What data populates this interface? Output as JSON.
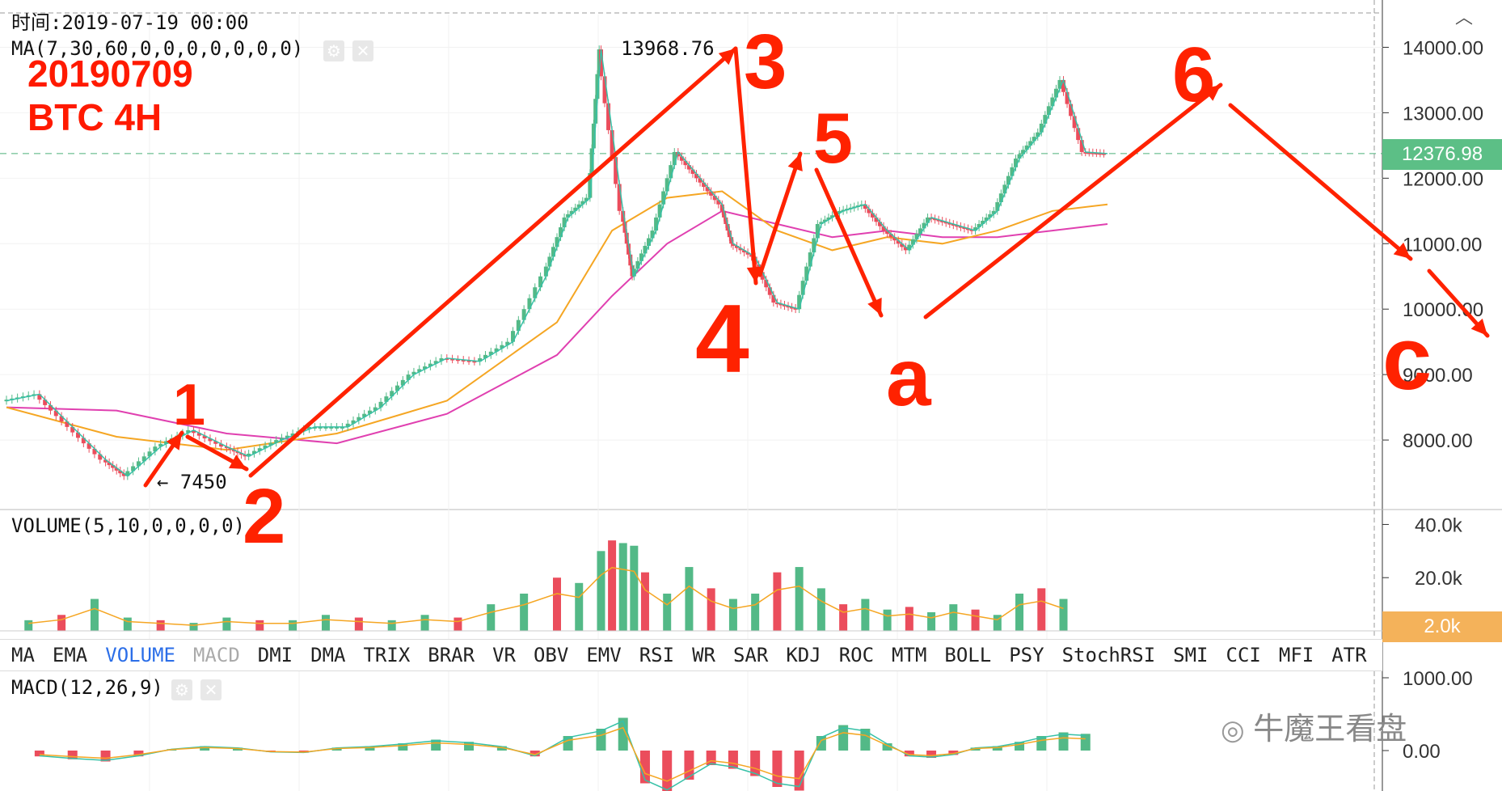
{
  "header": {
    "time_label": "时间:2019-07-19 00:00",
    "ma_label": "MA(7,30,60,0,0,0,0,0,0,0)",
    "settings_icon": "gear-icon",
    "close_icon": "close-icon"
  },
  "annotation_headline": {
    "date": "20190709",
    "title": "BTC 4H"
  },
  "price_labels": {
    "high": "13968.76",
    "low": "← 7450",
    "current": "12376.98"
  },
  "y_axis_price": [
    "14000.00",
    "13000.00",
    "12000.00",
    "11000.00",
    "10000.00",
    "9000.00",
    "8000.00"
  ],
  "volume_panel": {
    "label": "VOLUME(5,10,0,0,0,0)",
    "ticks": [
      "40.0k",
      "20.0k"
    ],
    "current": "2.0k"
  },
  "macd_panel": {
    "label": "MACD(12,26,9)",
    "ticks": [
      "1000.00",
      "0.00"
    ]
  },
  "indicator_tabs": [
    {
      "label": "MA",
      "state": "normal"
    },
    {
      "label": "EMA",
      "state": "normal"
    },
    {
      "label": "VOLUME",
      "state": "active"
    },
    {
      "label": "MACD",
      "state": "disabled"
    },
    {
      "label": "DMI",
      "state": "normal"
    },
    {
      "label": "DMA",
      "state": "normal"
    },
    {
      "label": "TRIX",
      "state": "normal"
    },
    {
      "label": "BRAR",
      "state": "normal"
    },
    {
      "label": "VR",
      "state": "normal"
    },
    {
      "label": "OBV",
      "state": "normal"
    },
    {
      "label": "EMV",
      "state": "normal"
    },
    {
      "label": "RSI",
      "state": "normal"
    },
    {
      "label": "WR",
      "state": "normal"
    },
    {
      "label": "SAR",
      "state": "normal"
    },
    {
      "label": "KDJ",
      "state": "normal"
    },
    {
      "label": "ROC",
      "state": "normal"
    },
    {
      "label": "MTM",
      "state": "normal"
    },
    {
      "label": "BOLL",
      "state": "normal"
    },
    {
      "label": "PSY",
      "state": "normal"
    },
    {
      "label": "StochRSI",
      "state": "normal"
    },
    {
      "label": "SMI",
      "state": "normal"
    },
    {
      "label": "CCI",
      "state": "normal"
    },
    {
      "label": "MFI",
      "state": "normal"
    },
    {
      "label": "ATR",
      "state": "normal"
    }
  ],
  "wave_labels": [
    "1",
    "2",
    "3",
    "4",
    "5",
    "6",
    "a",
    "c"
  ],
  "watermark": "牛魔王看盘",
  "colors": {
    "up": "#53b987",
    "down": "#eb4d5c",
    "ma7": "#36c1a7",
    "ma30": "#f5a623",
    "ma60": "#e040b0",
    "annotation": "#ff2200"
  },
  "chart_data": {
    "type": "line",
    "title": "BTC 4H",
    "x_range": [
      0,
      100
    ],
    "ylim": [
      7000,
      14500
    ],
    "series": [
      {
        "name": "price",
        "x": [
          0,
          3,
          6,
          9,
          11,
          14,
          17,
          20,
          22,
          25,
          28,
          31,
          34,
          37,
          40,
          43,
          46,
          49,
          51,
          53,
          54,
          56,
          57,
          59,
          61,
          63,
          65,
          66,
          68,
          70,
          72,
          74,
          76,
          78,
          80,
          82,
          84,
          86,
          88,
          90,
          92,
          94,
          96,
          98,
          100
        ],
        "y": [
          8600,
          8700,
          8200,
          7700,
          7450,
          7900,
          8150,
          7900,
          7750,
          8000,
          8200,
          8200,
          8500,
          9000,
          9250,
          9200,
          9500,
          10500,
          11400,
          11700,
          13968,
          11500,
          10500,
          11200,
          12400,
          12000,
          11600,
          11000,
          10800,
          10100,
          10000,
          11300,
          11500,
          11600,
          11200,
          10900,
          11400,
          11300,
          11200,
          11500,
          12300,
          12700,
          13500,
          12400,
          12376
        ]
      },
      {
        "name": "MA30",
        "x": [
          0,
          10,
          20,
          30,
          40,
          50,
          55,
          60,
          65,
          70,
          75,
          80,
          85,
          90,
          95,
          100
        ],
        "y": [
          8500,
          8050,
          7850,
          8100,
          8600,
          9800,
          11200,
          11700,
          11800,
          11200,
          10900,
          11100,
          11000,
          11200,
          11500,
          11600
        ]
      },
      {
        "name": "MA60",
        "x": [
          0,
          10,
          20,
          30,
          40,
          50,
          55,
          60,
          65,
          70,
          75,
          80,
          85,
          90,
          95,
          100
        ],
        "y": [
          8500,
          8450,
          8100,
          7950,
          8400,
          9300,
          10200,
          11000,
          11500,
          11300,
          11100,
          11200,
          11100,
          11100,
          11200,
          11300
        ]
      }
    ],
    "volume": [
      {
        "x": 2,
        "v": 4
      },
      {
        "x": 5,
        "v": 6
      },
      {
        "x": 8,
        "v": 12
      },
      {
        "x": 11,
        "v": 5
      },
      {
        "x": 14,
        "v": 4
      },
      {
        "x": 17,
        "v": 3
      },
      {
        "x": 20,
        "v": 5
      },
      {
        "x": 23,
        "v": 4
      },
      {
        "x": 26,
        "v": 4
      },
      {
        "x": 29,
        "v": 6
      },
      {
        "x": 32,
        "v": 5
      },
      {
        "x": 35,
        "v": 4
      },
      {
        "x": 38,
        "v": 6
      },
      {
        "x": 41,
        "v": 5
      },
      {
        "x": 44,
        "v": 10
      },
      {
        "x": 47,
        "v": 14
      },
      {
        "x": 50,
        "v": 20
      },
      {
        "x": 52,
        "v": 18
      },
      {
        "x": 54,
        "v": 30
      },
      {
        "x": 55,
        "v": 34
      },
      {
        "x": 56,
        "v": 33
      },
      {
        "x": 57,
        "v": 32
      },
      {
        "x": 58,
        "v": 22
      },
      {
        "x": 60,
        "v": 14
      },
      {
        "x": 62,
        "v": 24
      },
      {
        "x": 64,
        "v": 16
      },
      {
        "x": 66,
        "v": 12
      },
      {
        "x": 68,
        "v": 14
      },
      {
        "x": 70,
        "v": 22
      },
      {
        "x": 72,
        "v": 24
      },
      {
        "x": 74,
        "v": 16
      },
      {
        "x": 76,
        "v": 10
      },
      {
        "x": 78,
        "v": 12
      },
      {
        "x": 80,
        "v": 8
      },
      {
        "x": 82,
        "v": 9
      },
      {
        "x": 84,
        "v": 7
      },
      {
        "x": 86,
        "v": 10
      },
      {
        "x": 88,
        "v": 8
      },
      {
        "x": 90,
        "v": 6
      },
      {
        "x": 92,
        "v": 14
      },
      {
        "x": 94,
        "v": 16
      },
      {
        "x": 96,
        "v": 12
      }
    ],
    "macd": [
      {
        "x": 3,
        "v": -80
      },
      {
        "x": 6,
        "v": -120
      },
      {
        "x": 9,
        "v": -150
      },
      {
        "x": 12,
        "v": -80
      },
      {
        "x": 15,
        "v": 20
      },
      {
        "x": 18,
        "v": 60
      },
      {
        "x": 21,
        "v": 40
      },
      {
        "x": 24,
        "v": -20
      },
      {
        "x": 27,
        "v": -30
      },
      {
        "x": 30,
        "v": 40
      },
      {
        "x": 33,
        "v": 60
      },
      {
        "x": 36,
        "v": 100
      },
      {
        "x": 39,
        "v": 150
      },
      {
        "x": 42,
        "v": 120
      },
      {
        "x": 45,
        "v": 60
      },
      {
        "x": 48,
        "v": -80
      },
      {
        "x": 51,
        "v": 200
      },
      {
        "x": 54,
        "v": 300
      },
      {
        "x": 56,
        "v": 450
      },
      {
        "x": 58,
        "v": -450
      },
      {
        "x": 60,
        "v": -600
      },
      {
        "x": 62,
        "v": -400
      },
      {
        "x": 64,
        "v": -200
      },
      {
        "x": 66,
        "v": -250
      },
      {
        "x": 68,
        "v": -350
      },
      {
        "x": 70,
        "v": -500
      },
      {
        "x": 72,
        "v": -550
      },
      {
        "x": 74,
        "v": 200
      },
      {
        "x": 76,
        "v": 350
      },
      {
        "x": 78,
        "v": 300
      },
      {
        "x": 80,
        "v": 100
      },
      {
        "x": 82,
        "v": -80
      },
      {
        "x": 84,
        "v": -100
      },
      {
        "x": 86,
        "v": -60
      },
      {
        "x": 88,
        "v": 40
      },
      {
        "x": 90,
        "v": 60
      },
      {
        "x": 92,
        "v": 120
      },
      {
        "x": 94,
        "v": 200
      },
      {
        "x": 96,
        "v": 250
      },
      {
        "x": 98,
        "v": 230
      }
    ],
    "y_ticks": [
      "14000.00",
      "13000.00",
      "12000.00",
      "11000.00",
      "10000.00",
      "9000.00",
      "8000.00"
    ],
    "grid": true,
    "legend": "top-left"
  }
}
